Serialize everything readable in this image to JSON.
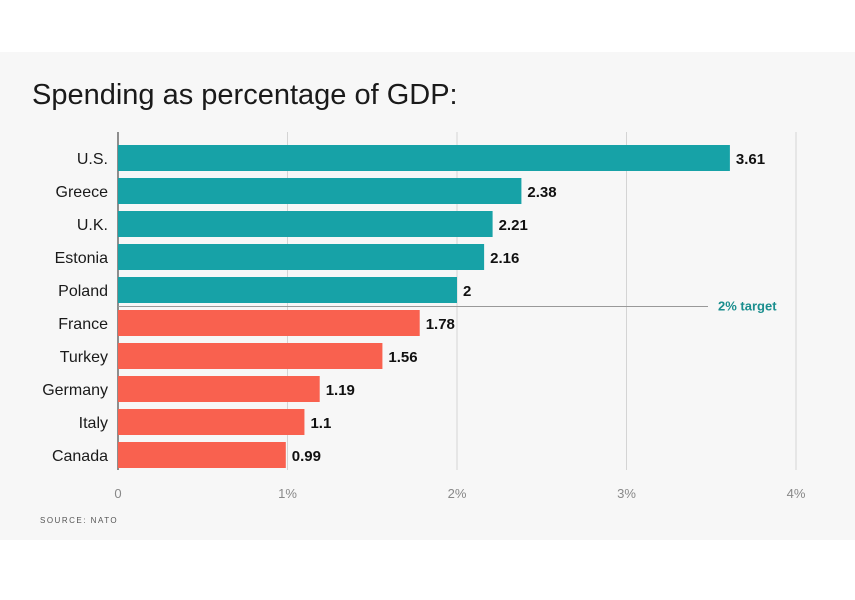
{
  "title": "Spending as percentage of GDP:",
  "source": "SOURCE: NATO",
  "colors": {
    "above_target": "#17a2a7",
    "below_target": "#f9614f",
    "target_text": "#1a8e8e"
  },
  "chart_data": {
    "type": "bar",
    "orientation": "horizontal",
    "title": "Spending as percentage of GDP:",
    "categories": [
      "U.S.",
      "Greece",
      "U.K.",
      "Estonia",
      "Poland",
      "France",
      "Turkey",
      "Germany",
      "Italy",
      "Canada"
    ],
    "values": [
      3.61,
      2.38,
      2.21,
      2.16,
      2,
      1.78,
      1.56,
      1.19,
      1.1,
      0.99
    ],
    "value_labels": [
      "3.61",
      "2.38",
      "2.21",
      "2.16",
      "2",
      "1.78",
      "1.56",
      "1.19",
      "1.1",
      "0.99"
    ],
    "xlim": [
      0,
      4
    ],
    "xticks": [
      0,
      1,
      2,
      3,
      4
    ],
    "xtick_labels": [
      "0",
      "1%",
      "2%",
      "3%",
      "4%"
    ],
    "grid": true,
    "reference_line": {
      "value": 2,
      "label": "2% target"
    }
  }
}
